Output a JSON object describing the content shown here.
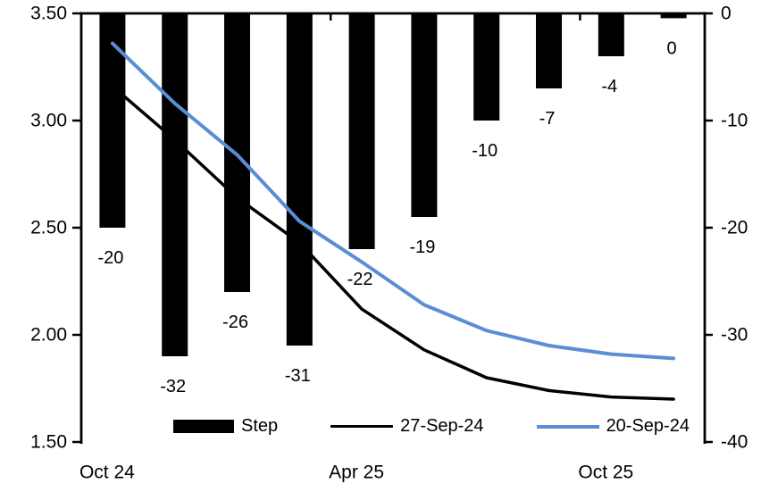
{
  "chart_data": {
    "type": "combo-bar-line",
    "n_categories": 10,
    "x_tick_labels": [
      {
        "label": "Oct 24",
        "slot": 0
      },
      {
        "label": "Apr 25",
        "slot": 4
      },
      {
        "label": "Oct 25",
        "slot": 8
      }
    ],
    "top_tick_slots": [
      4,
      8
    ],
    "bar_series": {
      "name": "Step",
      "axis": "right",
      "color": "#000000",
      "values": [
        -20,
        -32,
        -26,
        -31,
        -22,
        -19,
        -10,
        -7,
        -4,
        -0.45
      ],
      "labels": [
        "-20",
        "-32",
        "-26",
        "-31",
        "-22",
        "-19",
        "-10",
        "-7",
        "-4",
        "0"
      ]
    },
    "line_series": [
      {
        "name": "27-Sep-24",
        "axis": "left",
        "color": "#000000",
        "stroke_width": 3.5,
        "values": [
          3.16,
          2.91,
          2.64,
          2.43,
          2.12,
          1.93,
          1.8,
          1.74,
          1.71,
          1.7
        ]
      },
      {
        "name": "20-Sep-24",
        "axis": "left",
        "color": "#5B8DD5",
        "stroke_width": 4,
        "values": [
          3.36,
          3.08,
          2.84,
          2.53,
          2.34,
          2.14,
          2.02,
          1.95,
          1.91,
          1.89
        ]
      }
    ],
    "left_axis": {
      "min": 1.5,
      "max": 3.5,
      "tick_labels": [
        "3.50",
        "3.00",
        "2.50",
        "2.00",
        "1.50"
      ]
    },
    "right_axis": {
      "min": -40,
      "max": 0,
      "tick_labels": [
        "0",
        "-10",
        "-20",
        "-30",
        "-40"
      ]
    },
    "legend": [
      {
        "label": "Step",
        "swatch": "bar"
      },
      {
        "label": "27-Sep-24",
        "swatch": "line"
      },
      {
        "label": "20-Sep-24",
        "swatch": "line"
      }
    ],
    "colors": {
      "axis": "#000000",
      "background": "#FFFFFF",
      "accent_blue": "#5B8DD5"
    },
    "grid": "off",
    "legend_position": "bottom-inside"
  }
}
